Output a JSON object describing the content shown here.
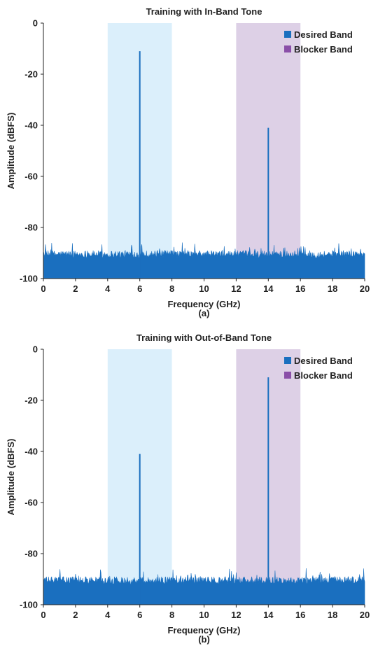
{
  "chart_data": [
    {
      "type": "line",
      "title": "Training with In-Band Tone",
      "caption": "(a)",
      "xlabel": "Frequency (GHz)",
      "ylabel": "Amplitude (dBFS)",
      "xlim": [
        0,
        20
      ],
      "ylim": [
        -100,
        0
      ],
      "x_ticks": [
        "0",
        "2",
        "4",
        "6",
        "8",
        "10",
        "12",
        "14",
        "16",
        "18",
        "20"
      ],
      "y_ticks": [
        "0",
        "-20",
        "-40",
        "-60",
        "-80",
        "-100"
      ],
      "grid": false,
      "legend_position": "top-right",
      "legend": [
        {
          "label": "Desired Band",
          "color": "#1a6fbf"
        },
        {
          "label": "Blocker Band",
          "color": "#8a4fa8"
        }
      ],
      "bands": [
        {
          "name": "Desired Band",
          "x": [
            4,
            8
          ],
          "color": "#dbeffb"
        },
        {
          "name": "Blocker Band",
          "x": [
            12,
            16
          ],
          "color": "#ddd0e6"
        }
      ],
      "noise_floor": {
        "min": -92,
        "max": -89,
        "bottom": -100
      },
      "tones": [
        {
          "x": 6,
          "y": -11
        },
        {
          "x": 14,
          "y": -41
        }
      ],
      "line_color": "#1a6fbf"
    },
    {
      "type": "line",
      "title": "Training with Out-of-Band Tone",
      "caption": "(b)",
      "xlabel": "Frequency (GHz)",
      "ylabel": "Amplitude (dBFS)",
      "xlim": [
        0,
        20
      ],
      "ylim": [
        -100,
        0
      ],
      "x_ticks": [
        "0",
        "2",
        "4",
        "6",
        "8",
        "10",
        "12",
        "14",
        "16",
        "18",
        "20"
      ],
      "y_ticks": [
        "0",
        "-20",
        "-40",
        "-60",
        "-80",
        "-100"
      ],
      "grid": false,
      "legend_position": "top-right",
      "legend": [
        {
          "label": "Desired Band",
          "color": "#1a6fbf"
        },
        {
          "label": "Blocker Band",
          "color": "#8a4fa8"
        }
      ],
      "bands": [
        {
          "name": "Desired Band",
          "x": [
            4,
            8
          ],
          "color": "#dbeffb"
        },
        {
          "name": "Blocker Band",
          "x": [
            12,
            16
          ],
          "color": "#ddd0e6"
        }
      ],
      "noise_floor": {
        "min": -92,
        "max": -89,
        "bottom": -100
      },
      "tones": [
        {
          "x": 6,
          "y": -41
        },
        {
          "x": 14,
          "y": -11
        }
      ],
      "line_color": "#1a6fbf"
    }
  ]
}
